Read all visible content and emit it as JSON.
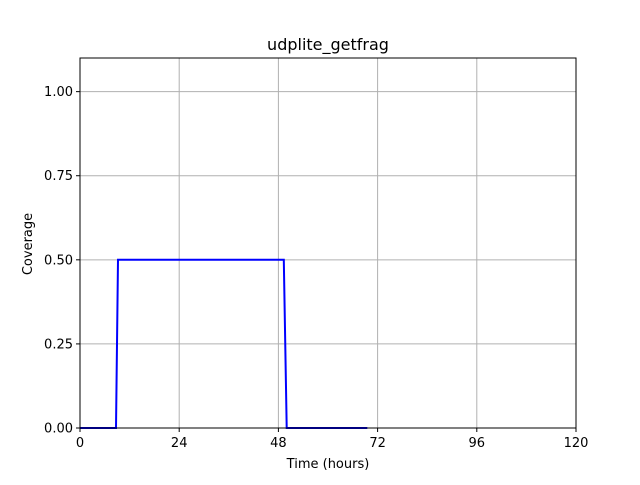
{
  "chart_data": {
    "type": "line",
    "title": "udplite_getfrag",
    "xlabel": "Time (hours)",
    "ylabel": "Coverage",
    "xlim": [
      0,
      120
    ],
    "ylim": [
      0,
      1.1
    ],
    "xticks": [
      0,
      24,
      48,
      72,
      96,
      120
    ],
    "xtick_labels": [
      "0",
      "24",
      "48",
      "72",
      "96",
      "120"
    ],
    "yticks": [
      0.0,
      0.25,
      0.5,
      0.75,
      1.0
    ],
    "ytick_labels": [
      "0.00",
      "0.25",
      "0.50",
      "0.75",
      "1.00"
    ],
    "grid": true,
    "legend": "none",
    "series": [
      {
        "color": "#0000ff",
        "x": [
          0,
          8.7,
          9.2,
          49.3,
          50.0,
          69.5
        ],
        "y": [
          0.0,
          0.0,
          0.5,
          0.5,
          0.0,
          0.0
        ]
      }
    ]
  }
}
